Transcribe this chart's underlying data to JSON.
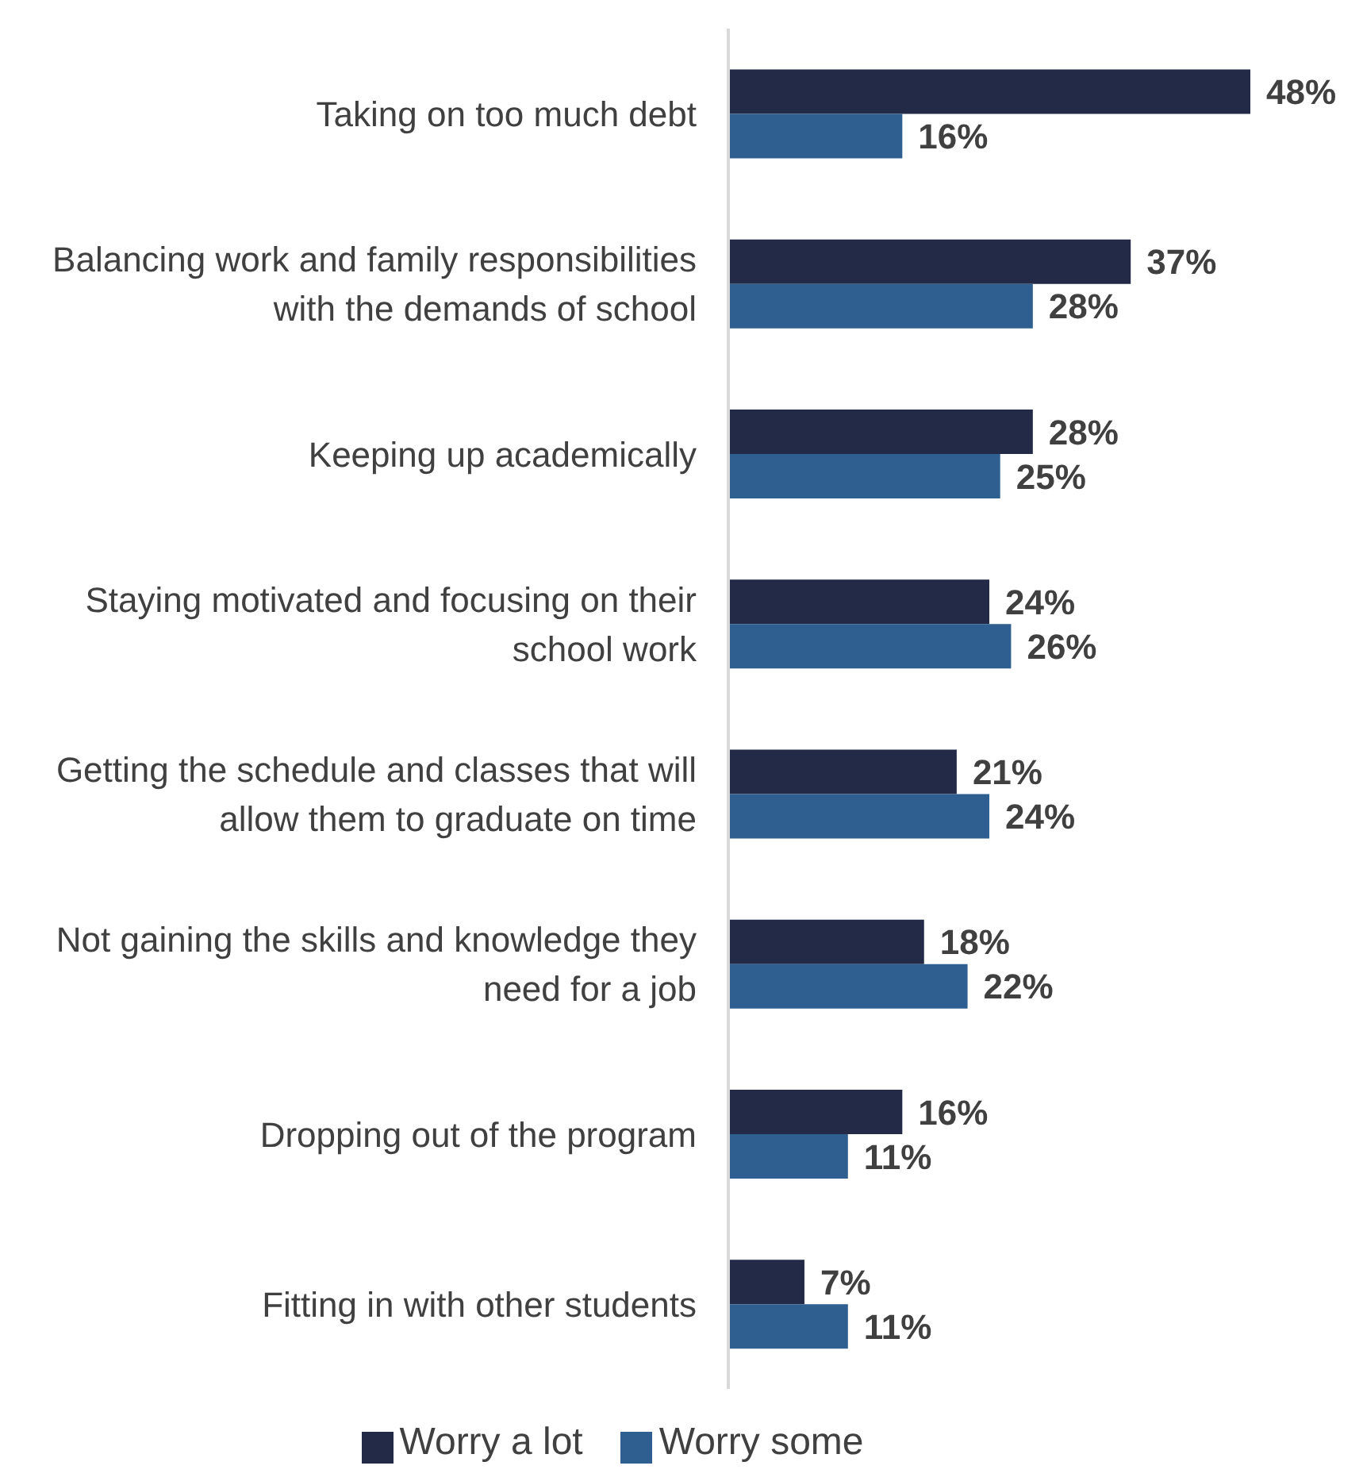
{
  "chart_data": {
    "type": "bar",
    "orientation": "horizontal",
    "categories": [
      "Taking on too much debt",
      "Balancing work and family responsibilities with the demands of school",
      "Keeping up academically",
      "Staying motivated and focusing on their school work",
      "Getting the schedule and classes that will allow them to graduate on time",
      "Not gaining the skills and knowledge they need for a job",
      "Dropping out of the program",
      "Fitting in with other students"
    ],
    "series": [
      {
        "name": "Worry a lot",
        "color": "#222a47",
        "values": [
          48,
          37,
          28,
          24,
          21,
          18,
          16,
          7
        ],
        "value_labels": [
          "48%",
          "37%",
          "28%",
          "24%",
          "21%",
          "18%",
          "16%",
          "7%"
        ]
      },
      {
        "name": "Worry some",
        "color": "#2f5f91",
        "values": [
          16,
          28,
          25,
          26,
          24,
          22,
          11,
          11
        ],
        "value_labels": [
          "16%",
          "28%",
          "25%",
          "26%",
          "24%",
          "22%",
          "11%",
          "11%"
        ]
      }
    ],
    "legend": "bottom",
    "grid": false
  }
}
